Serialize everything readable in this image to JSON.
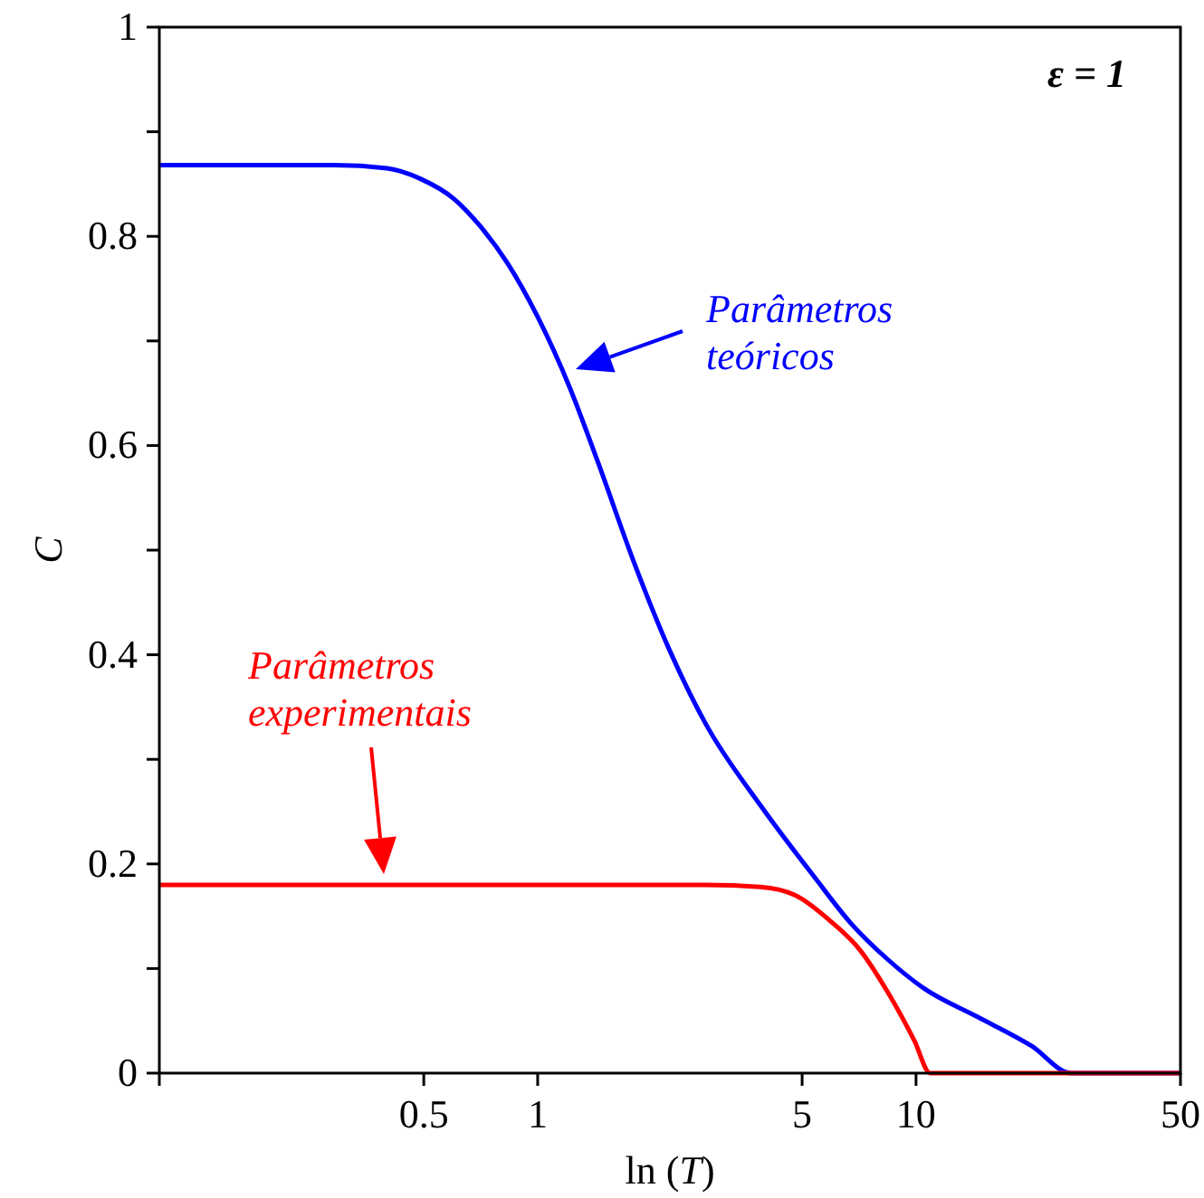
{
  "chart_data": {
    "type": "line",
    "xlabel": "ln (T)",
    "ylabel": "C",
    "log": "x",
    "xlim": [
      0.1,
      50
    ],
    "ylim": [
      0,
      1
    ],
    "xticks": [
      {
        "value": 0.1,
        "label": null
      },
      0.5,
      1,
      5,
      10,
      50
    ],
    "yticks": [
      0,
      {
        "value": 0.1,
        "label": null
      },
      0.2,
      {
        "value": 0.3,
        "label": null
      },
      0.4,
      {
        "value": 0.5,
        "label": null
      },
      0.6,
      {
        "value": 0.7,
        "label": null
      },
      0.8,
      {
        "value": 0.9,
        "label": null
      },
      1
    ],
    "grid": false,
    "marker": "none",
    "line_style": "solid",
    "annotations": [
      "ε = 1",
      "Parâmetros\nteóricos",
      "Parâmetros\nexperimentais"
    ],
    "series": [
      {
        "color": "#0000ff",
        "x": [
          0.1,
          0.29,
          0.4,
          0.49,
          0.6,
          0.7,
          0.83,
          1,
          1.22,
          1.44,
          1.79,
          2.24,
          2.78,
          3.88,
          5.4,
          6.7,
          8.4,
          10.5,
          14.5,
          20.2,
          25.7,
          50
        ],
        "values": [
          0.868,
          0.868,
          0.865,
          0.855,
          0.836,
          0.811,
          0.775,
          0.723,
          0.654,
          0.585,
          0.49,
          0.403,
          0.334,
          0.256,
          0.187,
          0.144,
          0.109,
          0.081,
          0.054,
          0.026,
          0,
          0
        ]
      },
      {
        "color": "#ff0000",
        "x": [
          0.1,
          1,
          2.78,
          3.88,
          4.8,
          6.0,
          7.1,
          8.4,
          9.9,
          10.9,
          50
        ],
        "values": [
          0.18,
          0.18,
          0.18,
          0.178,
          0.17,
          0.144,
          0.118,
          0.078,
          0.031,
          0,
          0
        ]
      }
    ]
  }
}
